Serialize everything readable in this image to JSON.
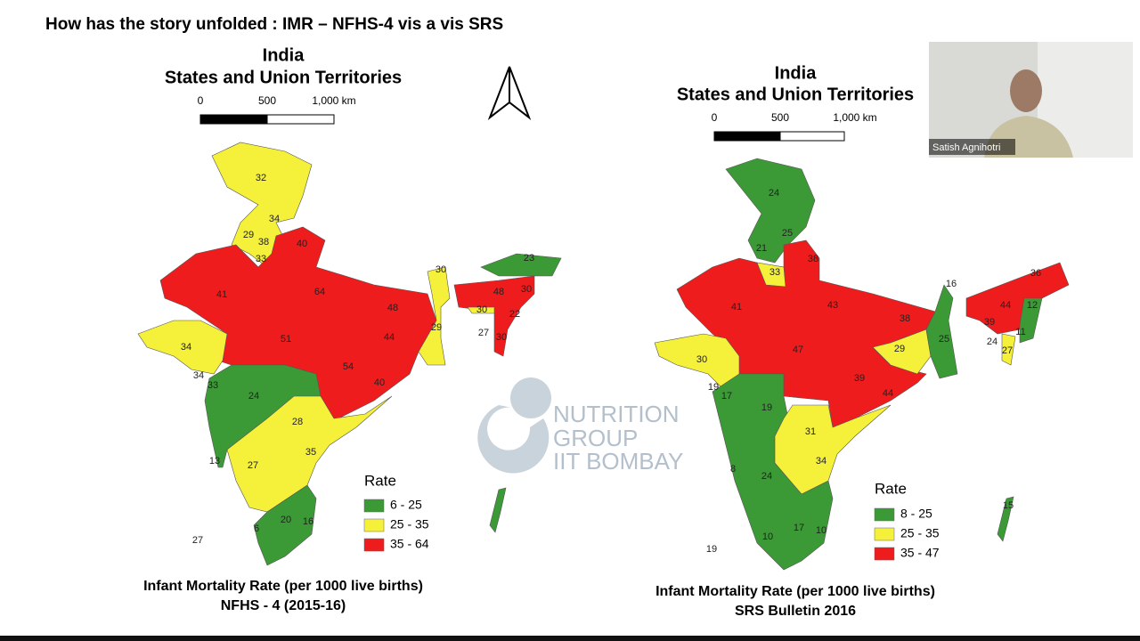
{
  "slide": {
    "title": "How has the story unfolded : IMR – NFHS-4 vis a vis SRS",
    "watermark": [
      "NUTRITION",
      "GROUP",
      "IIT BOMBAY"
    ],
    "presenter": "Satish Agnihotri",
    "maps": [
      {
        "heading": [
          "India",
          "States and Union Territories"
        ],
        "scale": [
          "0",
          "500",
          "1,000 km"
        ],
        "legend": {
          "title": "Rate",
          "classes": [
            {
              "label": "6 - 25",
              "color": "#3c9a36"
            },
            {
              "label": "25 - 35",
              "color": "#f5f03a"
            },
            {
              "label": "35 - 64",
              "color": "#ee1c1c"
            }
          ]
        },
        "labels": [
          "32",
          "34",
          "29",
          "38",
          "33",
          "40",
          "41",
          "64",
          "48",
          "51",
          "44",
          "34",
          "34",
          "33",
          "54",
          "40",
          "24",
          "28",
          "35",
          "13",
          "27",
          "20",
          "16",
          "6",
          "27",
          "30",
          "29",
          "23",
          "48",
          "30",
          "30",
          "22",
          "27",
          "30"
        ],
        "caption": [
          "Infant Mortality Rate (per 1000 live births)",
          "NFHS - 4 (2015-16)"
        ]
      },
      {
        "heading": [
          "India",
          "States and Union Territories"
        ],
        "scale": [
          "0",
          "500",
          "1,000 km"
        ],
        "legend": {
          "title": "Rate",
          "classes": [
            {
              "label": "8 - 25",
              "color": "#3c9a36"
            },
            {
              "label": "25 - 35",
              "color": "#f5f03a"
            },
            {
              "label": "35 - 47",
              "color": "#ee1c1c"
            }
          ]
        },
        "labels": [
          "24",
          "25",
          "21",
          "33",
          "38",
          "41",
          "43",
          "38",
          "47",
          "29",
          "25",
          "16",
          "36",
          "44",
          "12",
          "39",
          "11",
          "24",
          "27",
          "30",
          "19",
          "17",
          "19",
          "39",
          "44",
          "31",
          "34",
          "24",
          "8",
          "17",
          "10",
          "10",
          "19",
          "15"
        ],
        "caption": [
          "Infant Mortality Rate (per 1000 live births)",
          "SRS Bulletin 2016"
        ]
      }
    ]
  }
}
